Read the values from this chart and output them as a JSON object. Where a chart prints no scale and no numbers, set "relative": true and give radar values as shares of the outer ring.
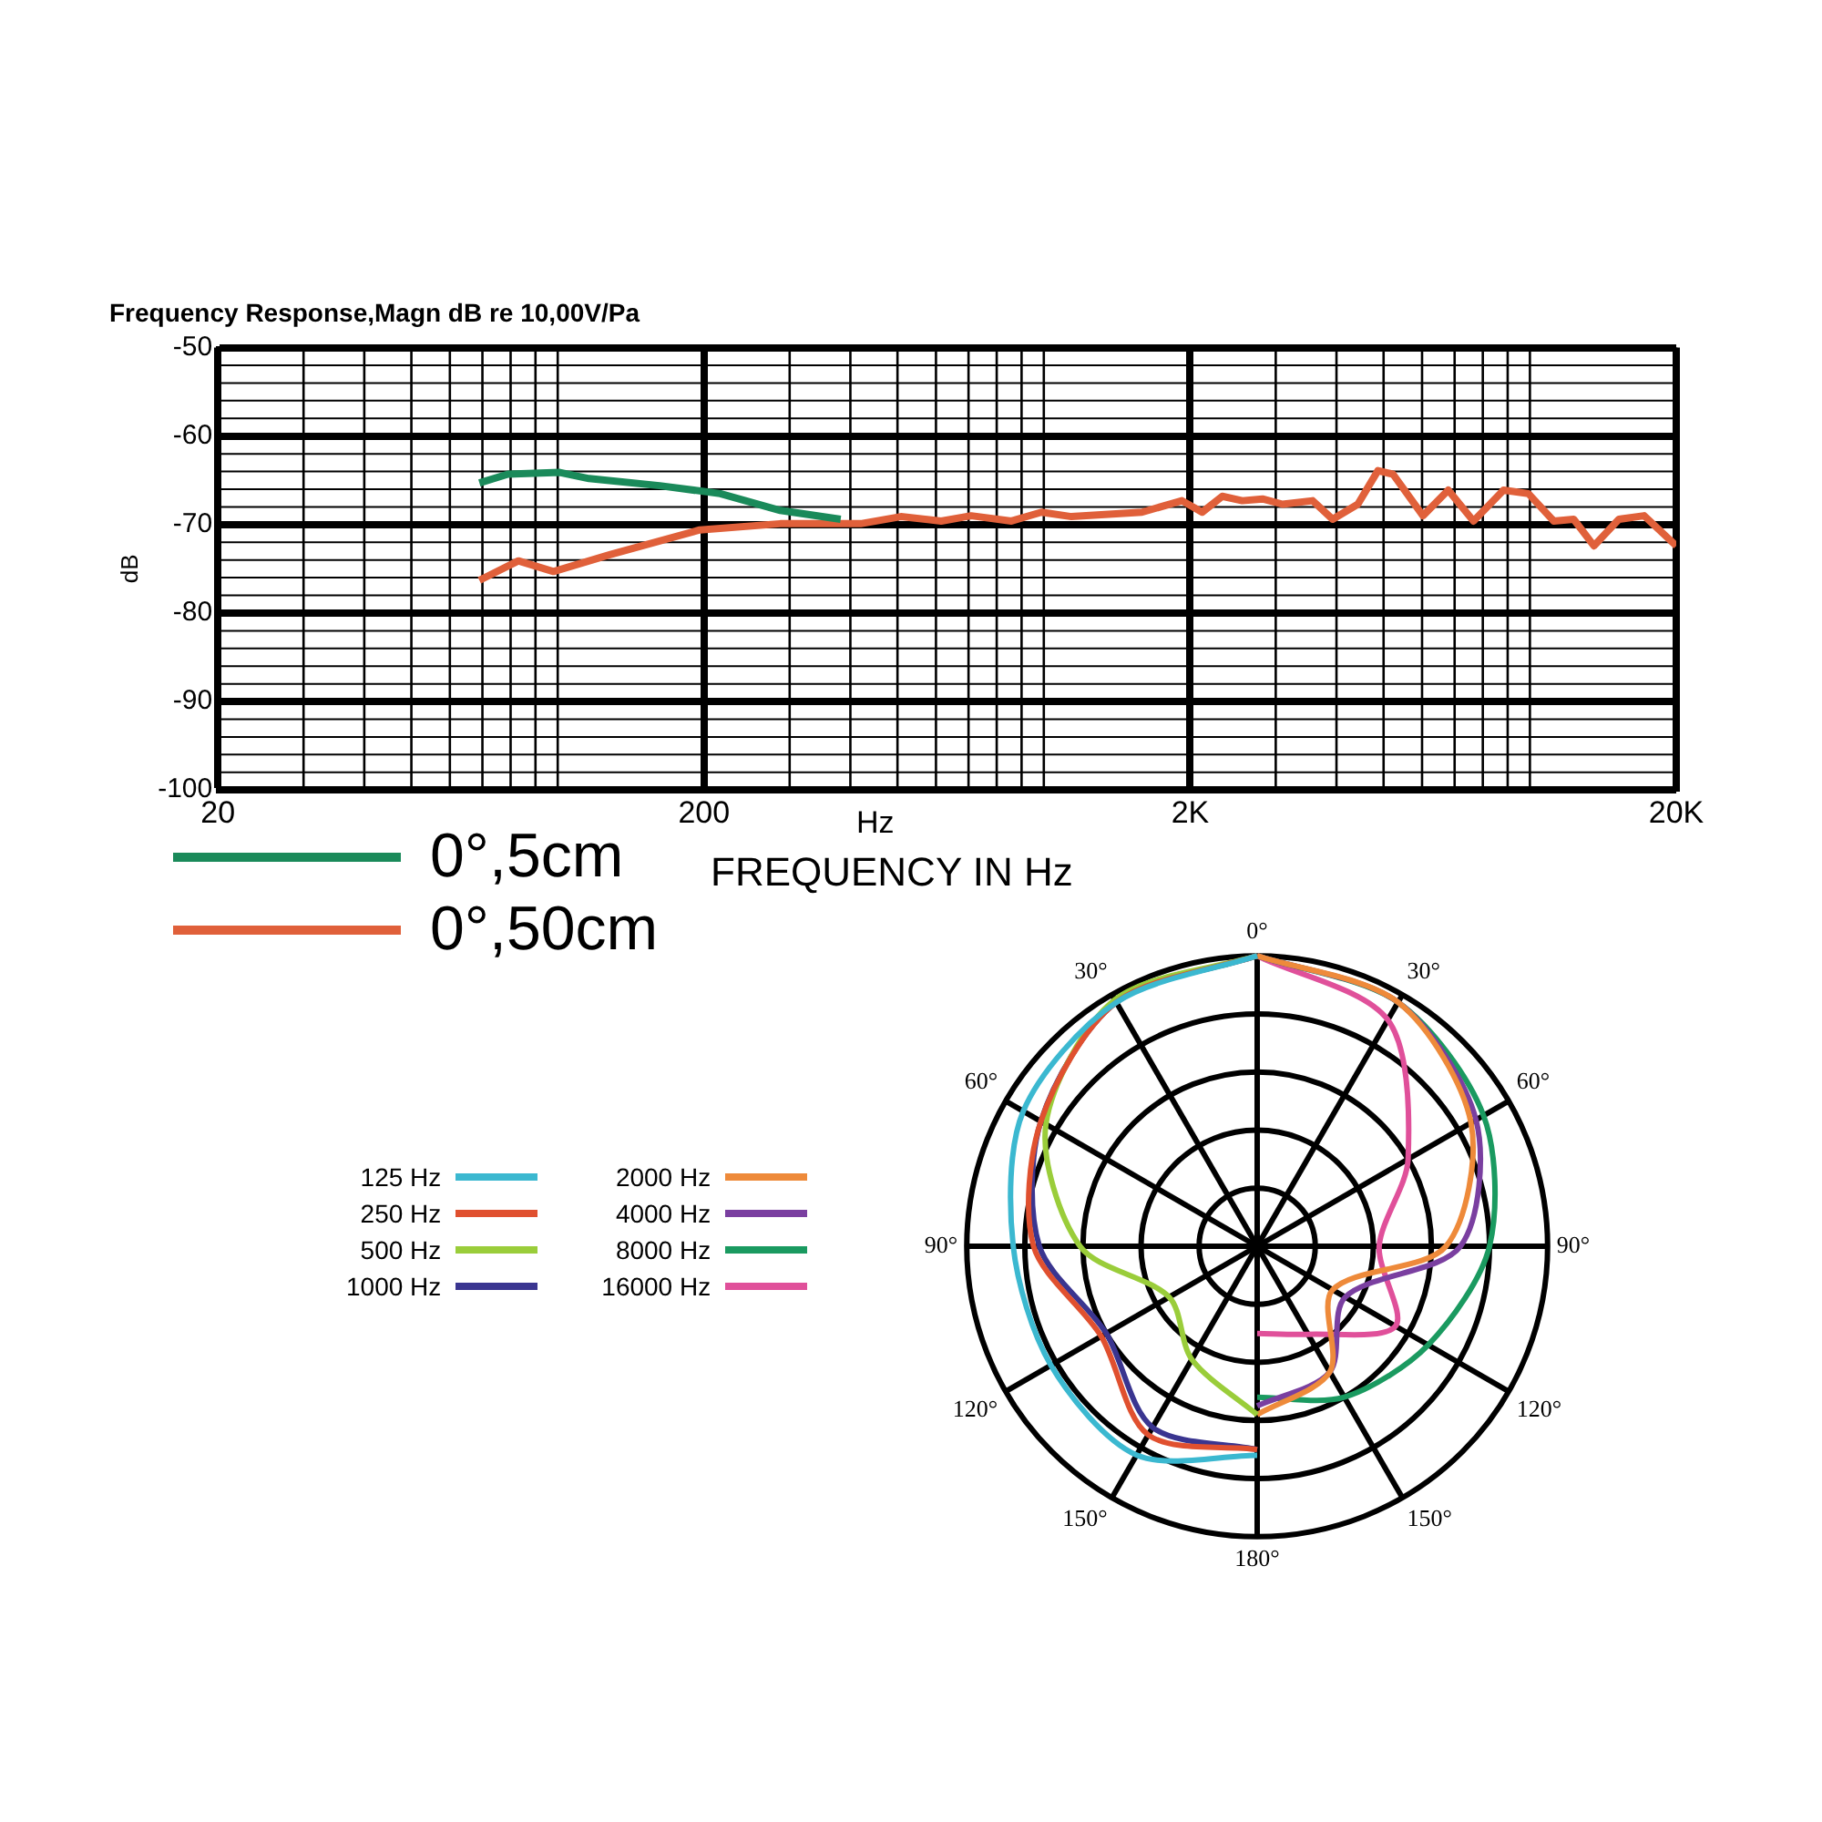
{
  "chart_data": [
    {
      "type": "line",
      "title": "Frequency Response,Magn dB re 10,00V/Pa",
      "xlabel": "FREQUENCY IN Hz",
      "ylabel": "dB",
      "annotations": [
        "Hz"
      ],
      "log": "x",
      "xlim": [
        20,
        20000
      ],
      "xticks": [
        {
          "value": 20,
          "label": "20"
        },
        {
          "value": 200,
          "label": "200"
        },
        {
          "value": 2000,
          "label": "2K"
        },
        {
          "value": 20000,
          "label": "20K"
        }
      ],
      "ylim": [
        -100,
        -50
      ],
      "yticks": [
        -100,
        -90,
        -80,
        -70,
        -60,
        -50
      ],
      "grid": true,
      "legend": "bottom left",
      "marker": "none",
      "line_style": "solid",
      "series": [
        {
          "name": "0°,5cm",
          "color": "#1a8a5a",
          "x": [
            69,
            79,
            101,
            116,
            162,
            216,
            287,
            382
          ],
          "values": [
            -65.3,
            -64.3,
            -64.1,
            -64.8,
            -65.6,
            -66.5,
            -68.4,
            -69.4
          ]
        },
        {
          "name": "0°,50cm",
          "color": "#e0603a",
          "x": [
            69,
            83,
            98,
            128,
            196,
            287,
            420,
            508,
            615,
            709,
            858,
            989,
            1140,
            1592,
            1924,
            2117,
            2328,
            2560,
            2818,
            3098,
            3573,
            3928,
            4426,
            4868,
            5227,
            6026,
            6792,
            7655,
            8826,
            9930,
            11195,
            12305,
            13541,
            15241,
            17179,
            20000
          ],
          "values": [
            -76.3,
            -74.1,
            -75.3,
            -73.4,
            -70.6,
            -69.9,
            -69.9,
            -69.1,
            -69.6,
            -69.0,
            -69.6,
            -68.6,
            -69.1,
            -68.6,
            -67.3,
            -68.6,
            -66.8,
            -67.3,
            -67.1,
            -67.7,
            -67.3,
            -69.4,
            -67.7,
            -63.9,
            -64.3,
            -69.0,
            -66.1,
            -69.6,
            -66.1,
            -66.5,
            -69.6,
            -69.4,
            -72.4,
            -69.4,
            -69.0,
            -72.4
          ]
        }
      ]
    },
    {
      "type": "radar",
      "relative": true,
      "legend": "left",
      "categories": [
        "0°",
        "30°",
        "60°",
        "90°",
        "120°",
        "150°",
        "180°",
        "150°",
        "120°",
        "90°",
        "60°",
        "30°"
      ],
      "series": [
        {
          "name": "125 Hz",
          "color": "#3bb8d0",
          "values": [
            1,
            null,
            null,
            null,
            null,
            null,
            0.72,
            0.83,
            0.82,
            0.84,
            0.93,
            0.97
          ]
        },
        {
          "name": "250 Hz",
          "color": "#e0502f",
          "values": [
            1,
            null,
            null,
            null,
            null,
            null,
            0.7,
            0.75,
            0.62,
            0.77,
            0.86,
            0.97
          ]
        },
        {
          "name": "500 Hz",
          "color": "#9acd3a",
          "values": [
            1,
            null,
            null,
            null,
            null,
            null,
            0.58,
            0.45,
            0.35,
            0.61,
            0.84,
            0.98
          ]
        },
        {
          "name": "1000 Hz",
          "color": "#3a3590",
          "values": [
            1,
            null,
            null,
            null,
            null,
            null,
            0.7,
            0.72,
            0.6,
            0.75,
            0.86,
            0.97
          ]
        },
        {
          "name": "2000 Hz",
          "color": "#ee8a3a",
          "values": [
            1,
            0.97,
            0.85,
            0.65,
            0.3,
            0.5,
            0.58,
            null,
            null,
            null,
            null,
            null
          ]
        },
        {
          "name": "4000 Hz",
          "color": "#7a3fa0",
          "values": [
            1,
            0.97,
            0.87,
            0.7,
            0.35,
            0.5,
            0.55,
            null,
            null,
            null,
            null,
            null
          ]
        },
        {
          "name": "8000 Hz",
          "color": "#1a9a60",
          "values": [
            1,
            0.97,
            0.9,
            0.8,
            0.68,
            0.6,
            0.52,
            null,
            null,
            null,
            null,
            null
          ]
        },
        {
          "name": "16000 Hz",
          "color": "#e0509a",
          "values": [
            1,
            0.9,
            0.6,
            0.42,
            0.55,
            0.35,
            0.3,
            null,
            null,
            null,
            null,
            null
          ]
        }
      ]
    }
  ]
}
